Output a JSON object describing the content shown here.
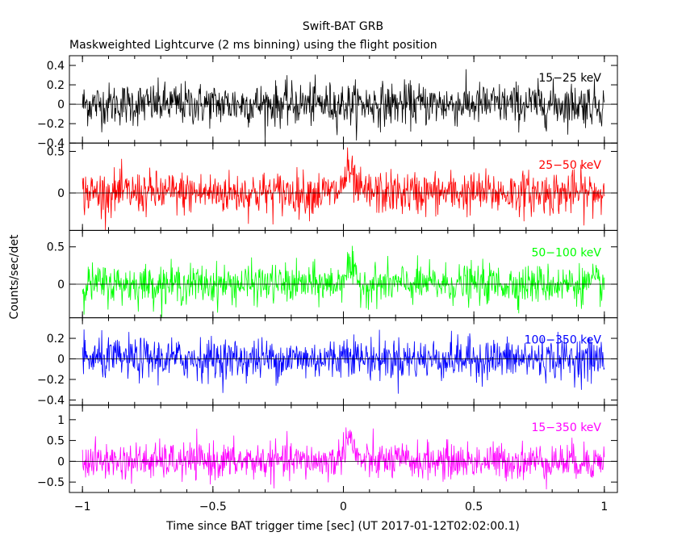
{
  "chart_data": {
    "type": "line",
    "title": "Swift-BAT GRB",
    "subtitle": "Maskweighted Lightcurve (2 ms binning) using the flight position",
    "xlabel": "Time since BAT trigger time [sec] (UT 2017-01-12T02:02:00.1)",
    "ylabel": "Counts/sec/det",
    "xlim": [
      -1.05,
      1.05
    ],
    "x_ticks": [
      -1,
      -0.5,
      0,
      0.5,
      1
    ],
    "x_tick_labels": [
      "−1",
      "−0.5",
      "0",
      "0.5",
      "1"
    ],
    "bin_width_sec": 0.002,
    "grid": false,
    "series": [
      {
        "name": "15−25 keV",
        "color": "#000000",
        "ylim": [
          -0.4,
          0.5
        ],
        "y_ticks": [
          -0.4,
          -0.2,
          0,
          0.2,
          0.4
        ],
        "y_tick_labels": [
          "−0.4",
          "−0.2",
          "0",
          "0.2",
          "0.4"
        ],
        "noise_sigma": 0.11,
        "burst_peak": 0.0
      },
      {
        "name": "25−50 keV",
        "color": "#ff0000",
        "ylim": [
          -0.45,
          0.6
        ],
        "y_ticks": [
          0,
          0.5
        ],
        "y_tick_labels": [
          "0",
          "0.5"
        ],
        "noise_sigma": 0.13,
        "burst_peak": 0.25
      },
      {
        "name": "50−100 keV",
        "color": "#00ff00",
        "ylim": [
          -0.45,
          0.72
        ],
        "y_ticks": [
          0,
          0.5
        ],
        "y_tick_labels": [
          "0",
          "0.5"
        ],
        "noise_sigma": 0.13,
        "burst_peak": 0.22
      },
      {
        "name": "100−350 keV",
        "color": "#0000ff",
        "ylim": [
          -0.45,
          0.4
        ],
        "y_ticks": [
          -0.4,
          -0.2,
          0,
          0.2
        ],
        "y_tick_labels": [
          "−0.4",
          "−0.2",
          "0",
          "0.2"
        ],
        "noise_sigma": 0.1,
        "burst_peak": 0.08
      },
      {
        "name": "15−350 keV",
        "color": "#ff00ff",
        "ylim": [
          -0.75,
          1.35
        ],
        "y_ticks": [
          -0.5,
          0,
          0.5,
          1
        ],
        "y_tick_labels": [
          "−0.5",
          "0",
          "0.5",
          "1"
        ],
        "noise_sigma": 0.22,
        "burst_peak": 0.6
      }
    ]
  }
}
